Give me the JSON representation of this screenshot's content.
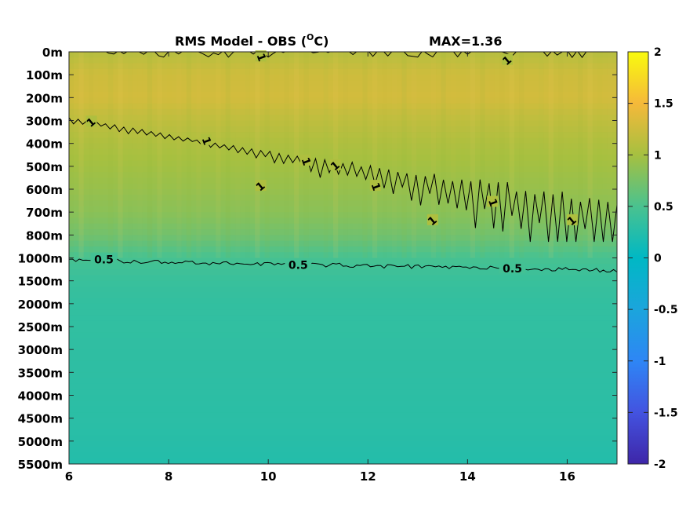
{
  "chart_data": {
    "type": "heatmap",
    "title": "RMS Model - OBS (",
    "title_unit": "C)",
    "title_degree": "O",
    "max_label": "MAX=1.36",
    "x": {
      "range": [
        6,
        17
      ],
      "ticks": [
        6,
        8,
        10,
        12,
        14,
        16
      ],
      "tick_labels": [
        "6",
        "8",
        "10",
        "12",
        "14",
        "16"
      ]
    },
    "y": {
      "tick_labels": [
        "0m",
        "100m",
        "200m",
        "300m",
        "400m",
        "500m",
        "600m",
        "700m",
        "800m",
        "1000m",
        "1500m",
        "2000m",
        "2500m",
        "3000m",
        "3500m",
        "4000m",
        "4500m",
        "5000m",
        "5500m"
      ],
      "depths": [
        0,
        100,
        200,
        300,
        400,
        500,
        600,
        700,
        800,
        1000,
        1500,
        2000,
        2500,
        3000,
        3500,
        4000,
        4500,
        5000,
        5500
      ]
    },
    "colorbar": {
      "range": [
        -2,
        2
      ],
      "ticks": [
        2,
        1.5,
        1,
        0.5,
        0,
        -0.5,
        -1,
        -1.5,
        -2
      ],
      "tick_labels": [
        "2",
        "1.5",
        "1",
        "0.5",
        "0",
        "-0.5",
        "-1",
        "-1.5",
        "-2"
      ],
      "colormap": "parula"
    },
    "field_profile": [
      {
        "level": 0,
        "value": 1.1
      },
      {
        "level": 1,
        "value": 1.25
      },
      {
        "level": 2,
        "value": 1.28
      },
      {
        "level": 3,
        "value": 1.15
      },
      {
        "level": 4,
        "value": 1.05
      },
      {
        "level": 5,
        "value": 0.98
      },
      {
        "level": 6,
        "value": 0.92
      },
      {
        "level": 7,
        "value": 0.85
      },
      {
        "level": 8,
        "value": 0.72
      },
      {
        "level": 9,
        "value": 0.48
      },
      {
        "level": 10,
        "value": 0.38
      },
      {
        "level": 11,
        "value": 0.34
      },
      {
        "level": 12,
        "value": 0.33
      },
      {
        "level": 13,
        "value": 0.32
      },
      {
        "level": 14,
        "value": 0.31
      },
      {
        "level": 15,
        "value": 0.3
      },
      {
        "level": 16,
        "value": 0.29
      },
      {
        "level": 17,
        "value": 0.27
      },
      {
        "level": 18,
        "value": 0.24
      }
    ],
    "contours": [
      {
        "level_label": "1",
        "labels": [
          {
            "x": 6.45,
            "level": 3.1
          },
          {
            "x": 8.75,
            "level": 3.9
          },
          {
            "x": 9.85,
            "level": 5.9
          },
          {
            "x": 10.75,
            "level": 4.8
          },
          {
            "x": 11.35,
            "level": 5.0
          },
          {
            "x": 12.15,
            "level": 5.9
          },
          {
            "x": 13.3,
            "level": 7.4
          },
          {
            "x": 14.5,
            "level": 6.6
          },
          {
            "x": 16.1,
            "level": 7.4
          },
          {
            "x": 9.85,
            "level": 0.25
          },
          {
            "x": 14.8,
            "level": 0.4
          }
        ]
      },
      {
        "level_label": "0.5",
        "labels": [
          {
            "x": 6.7,
            "level": 9.1
          },
          {
            "x": 10.6,
            "level": 9.35
          },
          {
            "x": 14.9,
            "level": 9.5
          }
        ]
      }
    ]
  }
}
